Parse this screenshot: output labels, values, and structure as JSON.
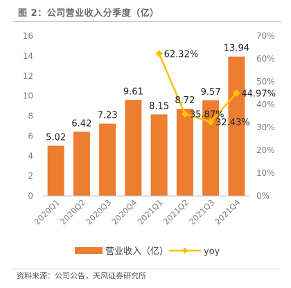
{
  "figure": {
    "title": "图 2：公司营业收入分季度（亿）",
    "source": "资料来源：公司公告，天风证券研究所"
  },
  "chart_data": {
    "type": "bar",
    "categories": [
      "2020Q1",
      "2020Q2",
      "2020Q3",
      "2020Q4",
      "2021Q1",
      "2021Q2",
      "2021Q3",
      "2021Q4"
    ],
    "series": [
      {
        "name": "营业收入（亿）",
        "type": "bar",
        "axis": "left",
        "color": "#ed7d31",
        "values": [
          5.02,
          6.42,
          7.23,
          9.61,
          8.15,
          8.72,
          9.57,
          13.94
        ],
        "labels": [
          "5.02",
          "6.42",
          "7.23",
          "9.61",
          "8.15",
          "8.72",
          "9.57",
          "13.94"
        ]
      },
      {
        "name": "yoy",
        "type": "line",
        "axis": "right",
        "color": "#ffc000",
        "values": [
          null,
          null,
          null,
          null,
          62.32,
          35.87,
          32.43,
          44.97
        ],
        "labels": [
          null,
          null,
          null,
          null,
          "62.32%",
          "35.87%",
          "32.43%",
          "44.97%"
        ]
      }
    ],
    "ylim_left": [
      0,
      16
    ],
    "yticks_left": [
      "0",
      "2",
      "4",
      "6",
      "8",
      "10",
      "12",
      "14",
      "16"
    ],
    "ylim_right": [
      0,
      70
    ],
    "yticks_right": [
      "0%",
      "10%",
      "20%",
      "30%",
      "40%",
      "50%",
      "60%",
      "70%"
    ],
    "xlabel": "",
    "ylabel": "",
    "grid": false,
    "legend": "bottom"
  }
}
